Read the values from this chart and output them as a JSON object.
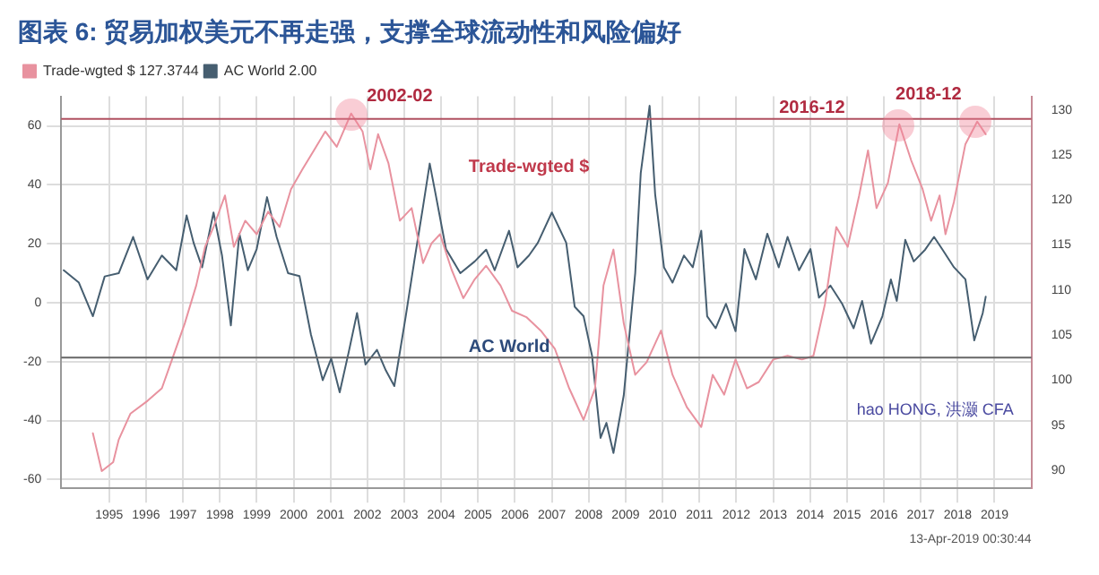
{
  "chart_data": {
    "type": "line",
    "title": "图表 6: 贸易加权美元不再走强，支撑全球流动性和风险偏好",
    "xlim": [
      1994.2,
      2020.5
    ],
    "xticks": [
      {
        "value": 1995.5,
        "label": "1995"
      },
      {
        "value": 1996.5,
        "label": "1996"
      },
      {
        "value": 1997.5,
        "label": "1997"
      },
      {
        "value": 1998.5,
        "label": "1998"
      },
      {
        "value": 1999.5,
        "label": "1999"
      },
      {
        "value": 2000.5,
        "label": "2000"
      },
      {
        "value": 2001.5,
        "label": "2001"
      },
      {
        "value": 2002.5,
        "label": "2002"
      },
      {
        "value": 2003.5,
        "label": "2003"
      },
      {
        "value": 2004.5,
        "label": "2004"
      },
      {
        "value": 2005.5,
        "label": "2005"
      },
      {
        "value": 2006.5,
        "label": "2006"
      },
      {
        "value": 2007.5,
        "label": "2007"
      },
      {
        "value": 2008.5,
        "label": "2008"
      },
      {
        "value": 2009.5,
        "label": "2009"
      },
      {
        "value": 2010.5,
        "label": "2010"
      },
      {
        "value": 2011.5,
        "label": "2011"
      },
      {
        "value": 2012.5,
        "label": "2012"
      },
      {
        "value": 2013.5,
        "label": "2013"
      },
      {
        "value": 2014.5,
        "label": "2014"
      },
      {
        "value": 2015.5,
        "label": "2015"
      },
      {
        "value": 2016.5,
        "label": "2016"
      },
      {
        "value": 2017.5,
        "label": "2017"
      },
      {
        "value": 2018.5,
        "label": "2018"
      },
      {
        "value": 2019.5,
        "label": "2019"
      }
    ],
    "ylim": [
      -63,
      70
    ],
    "yticks": [
      -60,
      -40,
      -20,
      0,
      20,
      40,
      60
    ],
    "y2lim": [
      88,
      131.5
    ],
    "y2ticks": [
      90,
      95,
      100,
      105,
      110,
      115,
      120,
      125,
      130
    ],
    "grid": true,
    "legend": "top left",
    "marker": "none",
    "line_style": "solid",
    "series": [
      {
        "name": "Trade-wgted $ 127.3744",
        "color": "#e8929f",
        "axis": "y2",
        "x": [
          1995.06,
          1995.3,
          1995.61,
          1995.76,
          1996.08,
          1996.54,
          1996.93,
          1997.24,
          1997.55,
          1997.86,
          1998.1,
          1998.33,
          1998.64,
          1998.88,
          1999.19,
          1999.5,
          1999.81,
          2000.12,
          2000.43,
          2000.74,
          2001.05,
          2001.36,
          2001.67,
          2002.06,
          2002.37,
          2002.58,
          2002.79,
          2003.07,
          2003.38,
          2003.7,
          2004.01,
          2004.24,
          2004.47,
          2004.78,
          2005.1,
          2005.41,
          2005.72,
          2006.11,
          2006.42,
          2006.81,
          2007.2,
          2007.58,
          2007.97,
          2008.36,
          2008.67,
          2008.9,
          2009.17,
          2009.45,
          2009.76,
          2010.07,
          2010.46,
          2010.77,
          2011.16,
          2011.55,
          2011.86,
          2012.17,
          2012.48,
          2012.79,
          2013.11,
          2013.5,
          2013.89,
          2014.28,
          2014.59,
          2014.9,
          2015.21,
          2015.52,
          2015.83,
          2016.07,
          2016.3,
          2016.61,
          2016.92,
          2017.24,
          2017.55,
          2017.78,
          2018.01,
          2018.17,
          2018.4,
          2018.71,
          2019.03,
          2019.26
        ],
        "values": [
          94.1,
          89.9,
          90.9,
          93.4,
          96.3,
          97.7,
          99.1,
          102.7,
          106.3,
          110.5,
          114.8,
          117,
          120.5,
          114.8,
          117.7,
          116.2,
          118.7,
          117,
          121.2,
          123.4,
          125.5,
          127.6,
          125.9,
          129.6,
          127.6,
          123.4,
          127.3,
          124.1,
          117.7,
          119.1,
          113,
          115.2,
          116.2,
          112.3,
          109.1,
          111.2,
          112.7,
          110.5,
          107.7,
          107,
          105.5,
          103.5,
          99.1,
          95.6,
          99.1,
          110.5,
          114.5,
          106.3,
          100.6,
          102,
          105.5,
          100.6,
          97,
          94.8,
          100.6,
          98.4,
          102.3,
          99.1,
          99.8,
          102.3,
          102.7,
          102.3,
          102.7,
          108.4,
          117,
          114.8,
          120.5,
          125.5,
          119.1,
          121.9,
          128.4,
          124.4,
          121.2,
          117.7,
          120.5,
          116.2,
          119.8,
          126.2,
          128.7,
          127.3
        ]
      },
      {
        "name": "AC World 2.00",
        "color": "#465e70",
        "x": [
          1994.27,
          1994.68,
          1995.06,
          1995.38,
          1995.76,
          1996.15,
          1996.54,
          1996.93,
          1997.32,
          1997.6,
          1997.79,
          1998.02,
          1998.33,
          1998.56,
          1998.8,
          1999.03,
          1999.26,
          1999.5,
          1999.78,
          2000.04,
          2000.35,
          2000.66,
          2000.97,
          2001.29,
          2001.52,
          2001.75,
          2001.99,
          2002.22,
          2002.45,
          2002.76,
          2003.0,
          2003.23,
          2003.54,
          2003.77,
          2004.01,
          2004.19,
          2004.35,
          2004.63,
          2005.02,
          2005.41,
          2005.72,
          2005.95,
          2006.34,
          2006.57,
          2006.88,
          2007.12,
          2007.5,
          2007.89,
          2008.12,
          2008.36,
          2008.59,
          2008.82,
          2008.98,
          2009.17,
          2009.45,
          2009.76,
          2009.91,
          2010.15,
          2010.3,
          2010.54,
          2010.77,
          2011.08,
          2011.32,
          2011.55,
          2011.71,
          2011.94,
          2012.22,
          2012.48,
          2012.72,
          2013.03,
          2013.34,
          2013.65,
          2013.89,
          2014.2,
          2014.51,
          2014.74,
          2015.05,
          2015.37,
          2015.68,
          2015.91,
          2016.15,
          2016.46,
          2016.69,
          2016.85,
          2017.08,
          2017.31,
          2017.62,
          2017.86,
          2018.09,
          2018.4,
          2018.71,
          2018.95,
          2019.18,
          2019.26
        ],
        "values": [
          11,
          6.8,
          -4.6,
          8.9,
          10,
          22.3,
          7.9,
          16,
          11,
          29.6,
          20.3,
          12,
          30.6,
          16,
          -7.7,
          23.4,
          11,
          18.2,
          35.8,
          22.3,
          10,
          9,
          -10.8,
          -26.3,
          -19,
          -30.4,
          -17,
          -3.5,
          -21,
          -16,
          -23,
          -28.3,
          -4.6,
          14,
          32.7,
          47.2,
          36.8,
          18.2,
          10,
          14,
          18,
          11,
          24.4,
          12,
          16,
          20.3,
          30.6,
          20.3,
          -1.4,
          -4.6,
          -18,
          -45.9,
          -40.8,
          -51,
          -31.4,
          10,
          44,
          66.8,
          36.8,
          12,
          6.8,
          16,
          12,
          24.4,
          -4.6,
          -8.7,
          -0.4,
          -9.7,
          18.2,
          7.9,
          23.4,
          12,
          22.3,
          11,
          18.2,
          1.7,
          5.8,
          -0.4,
          -8.7,
          0.6,
          -13.9,
          -4.6,
          7.9,
          0.6,
          21.3,
          14,
          18,
          22.3,
          18,
          12,
          7.9,
          -12.8,
          -3.5,
          2
        ]
      }
    ],
    "ref_lines": [
      {
        "axis": "y2",
        "value": 129,
        "color": "#b05060"
      },
      {
        "axis": "y2",
        "value": 102.5,
        "color": "#666666"
      }
    ],
    "annotations": [
      "2002-02",
      "2016-12",
      "2018-12",
      "Trade-wgted $",
      "AC World",
      "hao HONG, 洪灏 CFA",
      "13-Apr-2019 00:30:44"
    ]
  }
}
